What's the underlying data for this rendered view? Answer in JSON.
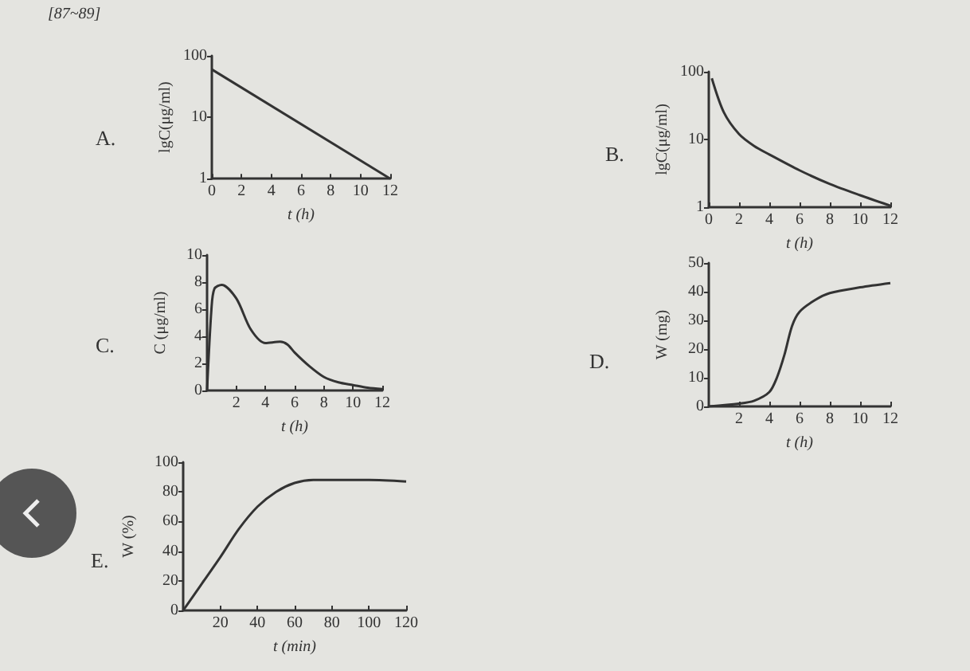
{
  "chart_data": [
    {
      "type": "line",
      "title": "A.",
      "annotations": [
        "[87~89]"
      ],
      "xlabel": "t (h)",
      "ylabel": "lgC(μg/ml)",
      "x": [
        0,
        12
      ],
      "values": [
        60,
        1
      ],
      "color": "#333333",
      "log": "y",
      "marker": "none",
      "xlim": [
        0,
        12
      ],
      "ylim": [
        1,
        100
      ],
      "xticks": [
        0,
        2,
        4,
        6,
        8,
        10,
        12
      ],
      "yticks": [
        1,
        10,
        100
      ]
    },
    {
      "type": "line",
      "title": "B.",
      "xlabel": "t (h)",
      "ylabel": "lgC(μg/ml)",
      "x": [
        0.2,
        1,
        2,
        3,
        4,
        6,
        8,
        10,
        12
      ],
      "values": [
        80,
        25,
        12,
        8,
        6,
        3.5,
        2.2,
        1.5,
        1.05
      ],
      "color": "#333333",
      "log": "y",
      "marker": "none",
      "xlim": [
        0,
        12
      ],
      "ylim": [
        1,
        100
      ],
      "xticks": [
        0,
        2,
        4,
        6,
        8,
        10,
        12
      ],
      "yticks": [
        1,
        10,
        100
      ]
    },
    {
      "type": "line",
      "title": "C.",
      "xlabel": "t (h)",
      "ylabel": "C (μg/ml)",
      "x": [
        0,
        0.3,
        0.5,
        1,
        2,
        3,
        4,
        5,
        5.5,
        6,
        7,
        8,
        9,
        10,
        11,
        12
      ],
      "values": [
        0,
        6,
        7.5,
        7.8,
        6.8,
        4.5,
        3.5,
        3.6,
        3.4,
        2.8,
        1.8,
        1,
        0.6,
        0.4,
        0.2,
        0.1
      ],
      "color": "#333333",
      "marker": "none",
      "xlim": [
        0,
        12
      ],
      "ylim": [
        0,
        10
      ],
      "xticks": [
        2,
        4,
        6,
        8,
        10,
        12
      ],
      "yticks": [
        0,
        2,
        4,
        6,
        8,
        10
      ]
    },
    {
      "type": "line",
      "title": "D.",
      "xlabel": "t (h)",
      "ylabel": "W (mg)",
      "x": [
        0,
        2,
        3,
        4,
        4.5,
        5,
        5.5,
        6,
        7,
        8,
        10,
        12
      ],
      "values": [
        0,
        1,
        2,
        5,
        10,
        18,
        28,
        33,
        37,
        39.5,
        41.5,
        43
      ],
      "color": "#333333",
      "marker": "none",
      "xlim": [
        0,
        12
      ],
      "ylim": [
        0,
        50
      ],
      "xticks": [
        2,
        4,
        6,
        8,
        10,
        12
      ],
      "yticks": [
        0,
        10,
        20,
        30,
        40,
        50
      ]
    },
    {
      "type": "line",
      "title": "E.",
      "xlabel": "t (min)",
      "ylabel": "W (%)",
      "x": [
        0,
        10,
        20,
        30,
        40,
        50,
        60,
        70,
        80,
        100,
        120
      ],
      "values": [
        0,
        18,
        36,
        55,
        70,
        80,
        86,
        88,
        88,
        88,
        87
      ],
      "color": "#333333",
      "marker": "none",
      "xlim": [
        0,
        120
      ],
      "ylim": [
        0,
        100
      ],
      "xticks": [
        20,
        40,
        60,
        80,
        100,
        120
      ],
      "yticks": [
        0,
        20,
        40,
        60,
        80,
        100
      ]
    }
  ]
}
